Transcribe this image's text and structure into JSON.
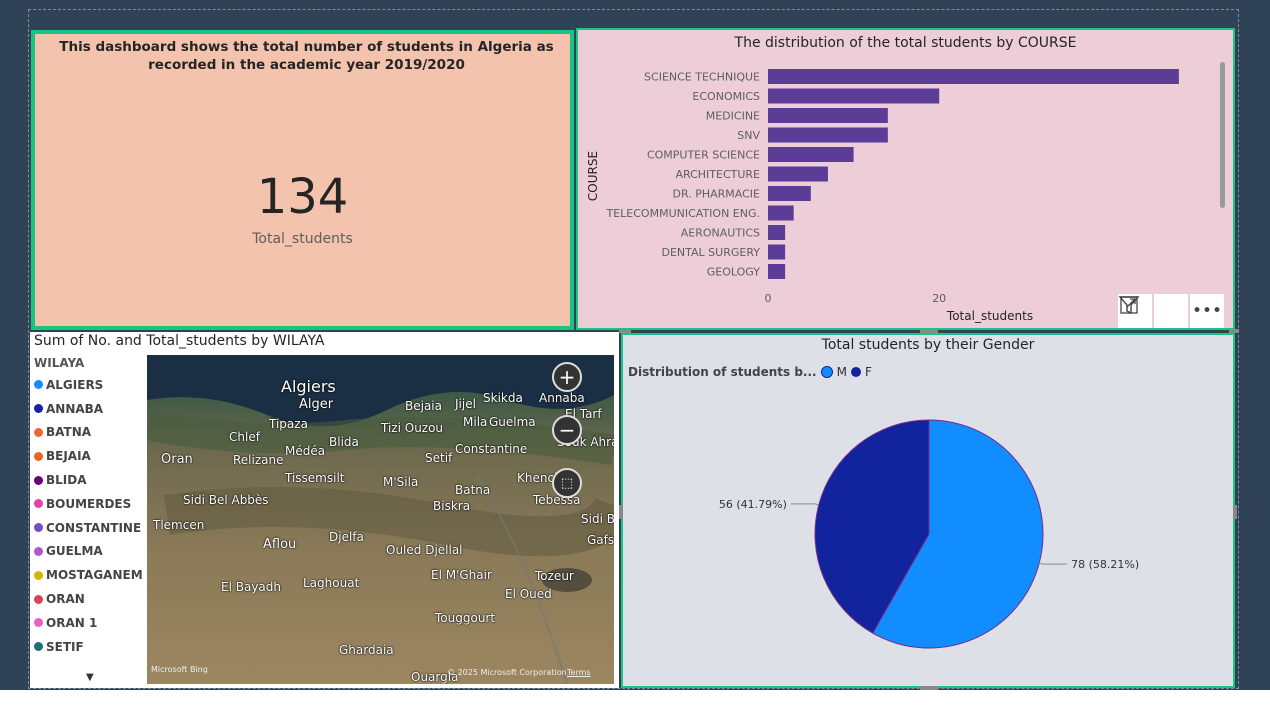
{
  "kpi": {
    "description": "This dashboard shows the total number of students in Algeria as recorded in the academic year 2019/2020",
    "value": "134",
    "label": "Total_students"
  },
  "bar_chart": {
    "title": "The distribution of the total students by COURSE",
    "toolbar": {
      "filter_icon": "filter-icon",
      "focus_icon": "focus-mode-icon",
      "more_icon": "more-options-icon"
    }
  },
  "map": {
    "title": "Sum of No. and Total_students by WILAYA",
    "legend_title": "WILAYA",
    "legend": [
      {
        "name": "ALGIERS",
        "color": "#118dff"
      },
      {
        "name": "ANNABA",
        "color": "#12239e"
      },
      {
        "name": "BATNA",
        "color": "#e66c37"
      },
      {
        "name": "BEJAIA",
        "color": "#e8651c"
      },
      {
        "name": "BLIDA",
        "color": "#6b007b"
      },
      {
        "name": "BOUMERDES",
        "color": "#e044a7"
      },
      {
        "name": "CONSTANTINE",
        "color": "#744ec2"
      },
      {
        "name": "GUELMA",
        "color": "#b556c9"
      },
      {
        "name": "MOSTAGANEM",
        "color": "#d9b300"
      },
      {
        "name": "ORAN",
        "color": "#d64550"
      },
      {
        "name": "ORAN 1",
        "color": "#e85fc4"
      },
      {
        "name": "SETIF",
        "color": "#197278"
      }
    ],
    "cities": [
      "Algiers",
      "Alger",
      "Bejaia",
      "Jijel",
      "Skikda",
      "Annaba",
      "El Tarf",
      "Tipaza",
      "Tizi Ouzou",
      "Mila",
      "Guelma",
      "Chlef",
      "Blida",
      "Souk Ahras",
      "Médéa",
      "Constantine",
      "Oran",
      "Relizane",
      "Setif",
      "Tissemsilt",
      "M'Sila",
      "Khenchela",
      "Batna",
      "Sidi Bel Abbès",
      "Tebessa",
      "Biskra",
      "Tlemcen",
      "Sidi B",
      "Djelfa",
      "Gafsa",
      "Aflou",
      "Ouled Djellal",
      "El M'Ghair",
      "Tozeur",
      "El Bayadh",
      "Laghouat",
      "El Oued",
      "Touggourt",
      "Ghardaia",
      "Ouargla"
    ],
    "credit_brand": "Microsoft Bing",
    "credit": "© 2025 Microsoft Corporation",
    "terms": "Terms"
  },
  "pie": {
    "title": "Total students by their Gender",
    "legend_title": "Distribution of students b...",
    "slices": [
      {
        "name": "M",
        "value": 78,
        "label": "78 (58.21%)",
        "color": "#118dff"
      },
      {
        "name": "F",
        "value": 56,
        "label": "56 (41.79%)",
        "color": "#12239e"
      }
    ]
  },
  "chart_data": {
    "type": "bar",
    "orientation": "horizontal",
    "title": "The distribution of the total students by COURSE",
    "xlabel": "Total_students",
    "ylabel": "COURSE",
    "categories": [
      "SCIENCE TECHNIQUE",
      "ECONOMICS",
      "MEDICINE",
      "SNV",
      "COMPUTER SCIENCE",
      "ARCHITECTURE",
      "DR. PHARMACIE",
      "TELECOMMUNICATION ENG.",
      "AERONAUTICS",
      "DENTAL SURGERY",
      "GEOLOGY"
    ],
    "values": [
      48,
      20,
      14,
      14,
      10,
      7,
      5,
      3,
      2,
      2,
      2
    ],
    "xticks": [
      0,
      20
    ],
    "xlim": [
      0,
      50
    ],
    "color": "#5b3c97"
  }
}
